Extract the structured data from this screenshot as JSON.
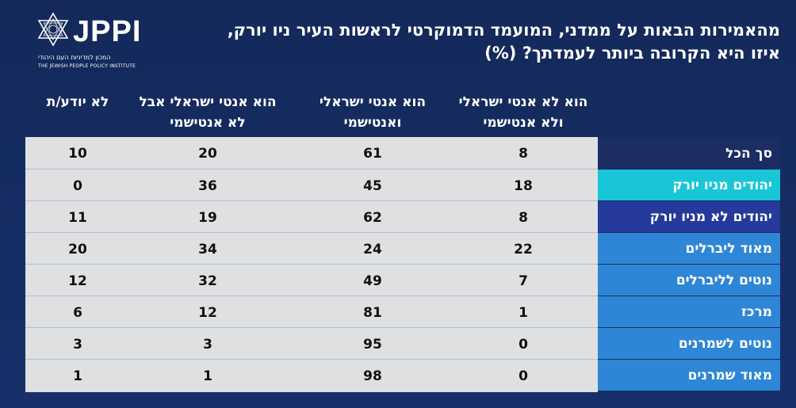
{
  "logo": {
    "text": "JPPI",
    "subtitle_he": "המכון למדיניות העם היהודי",
    "subtitle_en": "THE JEWISH PEOPLE POLICY INSTITUTE"
  },
  "title_line1": "מהאמירות הבאות על ממדני, המועמד הדמוקרטי לראשות העיר ניו יורק,",
  "title_line2": "איזו היא הקרובה ביותר לעמדתך? (%)",
  "columns": [
    {
      "line1": "הוא לא אנטי ישראלי",
      "line2": "ולא אנטישמי"
    },
    {
      "line1": "הוא אנטי ישראלי",
      "line2": "ואנטישמי"
    },
    {
      "line1": "הוא אנטי ישראלי אבל",
      "line2": "לא אנטישמי"
    },
    {
      "line1": "לא יודע/ת",
      "line2": ""
    }
  ],
  "colors": {
    "row_label_bg": [
      "#1b2d62",
      "#19c6d8",
      "#253a9a",
      "#2e86d6",
      "#2e86d6",
      "#2e86d6",
      "#2e86d6",
      "#2e86d6"
    ],
    "table_bg": "#dfe0e2",
    "background": "#162a57"
  },
  "chart_data": {
    "type": "table",
    "categories": [
      "סך הכל",
      "יהודים מניו יורק",
      "יהודים לא מניו יורק",
      "מאוד ליברלים",
      "נוטים לליברלים",
      "מרכז",
      "נוטים לשמרנים",
      "מאוד שמרנים"
    ],
    "series": [
      {
        "name": "הוא לא אנטי ישראלי ולא אנטישמי",
        "values": [
          8,
          18,
          8,
          22,
          7,
          1,
          0,
          0
        ]
      },
      {
        "name": "הוא אנטי ישראלי ואנטישמי",
        "values": [
          61,
          45,
          62,
          24,
          49,
          81,
          95,
          98
        ]
      },
      {
        "name": "הוא אנטי ישראלי אבל לא אנטישמי",
        "values": [
          20,
          36,
          19,
          34,
          32,
          12,
          3,
          1
        ]
      },
      {
        "name": "לא יודע/ת",
        "values": [
          10,
          0,
          11,
          20,
          12,
          6,
          3,
          1
        ]
      }
    ]
  }
}
